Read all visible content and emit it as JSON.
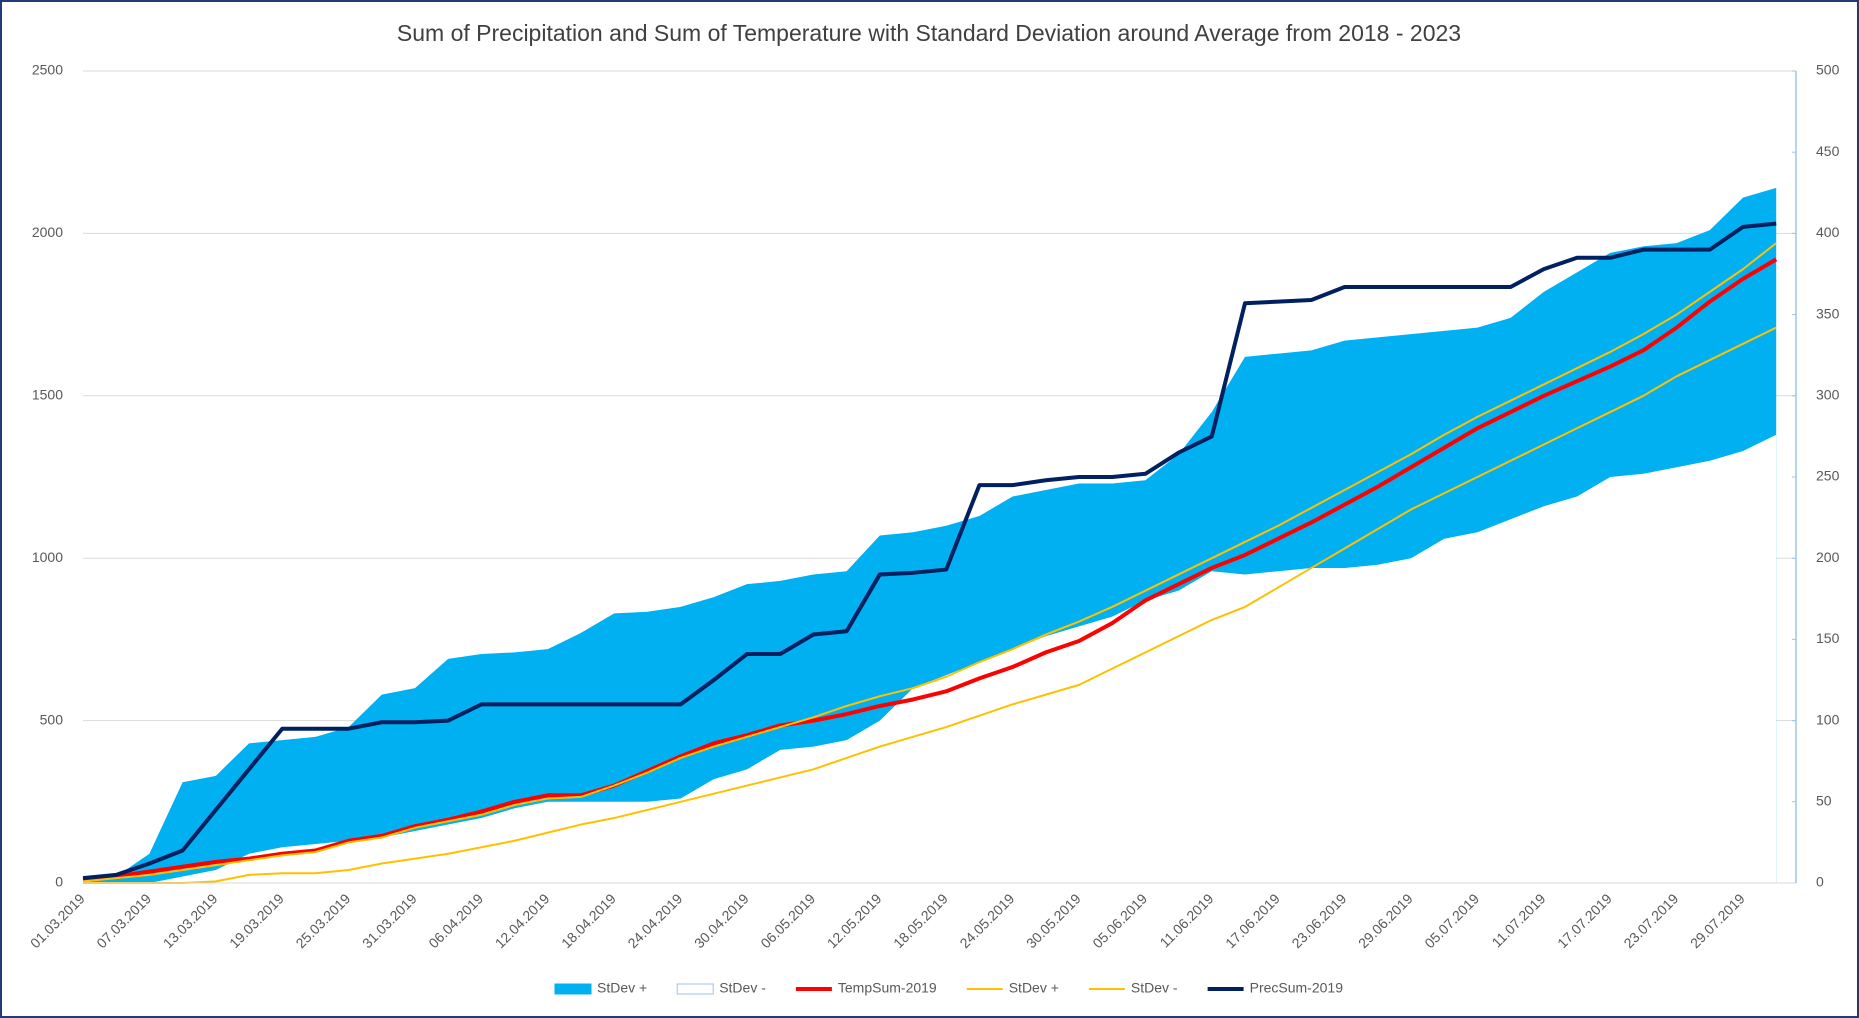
{
  "chart_data": {
    "type": "line",
    "title": "Sum of Precipitation and Sum of Temperature with Standard Deviation around Average from 2018 - 2023",
    "categories": [
      "01.03.2019",
      null,
      "07.03.2019",
      null,
      "13.03.2019",
      null,
      "19.03.2019",
      null,
      "25.03.2019",
      null,
      "31.03.2019",
      null,
      "06.04.2019",
      null,
      "12.04.2019",
      null,
      "18.04.2019",
      null,
      "24.04.2019",
      null,
      "30.04.2019",
      null,
      "06.05.2019",
      null,
      "12.05.2019",
      null,
      "18.05.2019",
      null,
      "24.05.2019",
      null,
      "30.05.2019",
      null,
      "05.06.2019",
      null,
      "11.06.2019",
      null,
      "17.06.2019",
      null,
      "23.06.2019",
      null,
      "29.06.2019",
      null,
      "05.07.2019",
      null,
      "11.07.2019",
      null,
      "17.07.2019",
      null,
      "23.07.2019",
      null,
      "29.07.2019",
      null
    ],
    "series": [
      {
        "name": "StDev +",
        "color": "#00b0f0",
        "mark": "area",
        "axis": "y2",
        "values": [
          0,
          4,
          18,
          62,
          66,
          86,
          88,
          90,
          96,
          116,
          120,
          138,
          141,
          142,
          144,
          154,
          166,
          167,
          170,
          176,
          184,
          186,
          190,
          192,
          214,
          216,
          220,
          226,
          238,
          242,
          246,
          246,
          248,
          264,
          290,
          324,
          326,
          328,
          334,
          336,
          338,
          340,
          342,
          348,
          364,
          376,
          388,
          392,
          394,
          402,
          422,
          428
        ]
      },
      {
        "name": "StDev -",
        "color": "#ffffff",
        "mark": "area",
        "axis": "y2",
        "values": [
          0,
          0,
          0,
          4,
          8,
          18,
          22,
          24,
          26,
          28,
          32,
          36,
          40,
          46,
          50,
          50,
          50,
          50,
          52,
          64,
          70,
          82,
          84,
          88,
          100,
          120,
          128,
          136,
          144,
          152,
          158,
          164,
          174,
          180,
          192,
          190,
          192,
          194,
          194,
          196,
          200,
          212,
          216,
          224,
          232,
          238,
          250,
          252,
          256,
          260,
          266,
          276
        ]
      },
      {
        "name": "TempSum-2019",
        "color": "#ff0000",
        "mark": "line",
        "width": 4,
        "values": [
          10,
          20,
          35,
          50,
          65,
          75,
          90,
          100,
          130,
          145,
          175,
          195,
          220,
          250,
          270,
          270,
          300,
          345,
          390,
          430,
          455,
          485,
          500,
          520,
          545,
          565,
          590,
          630,
          665,
          710,
          745,
          800,
          870,
          920,
          970,
          1010,
          1060,
          1110,
          1165,
          1220,
          1280,
          1340,
          1400,
          1450,
          1500,
          1545,
          1590,
          1640,
          1710,
          1790,
          1860,
          1920
        ]
      },
      {
        "name": "StDev +",
        "color": "#ffc000",
        "mark": "line",
        "width": 2,
        "values": [
          5,
          15,
          25,
          40,
          55,
          70,
          85,
          95,
          125,
          140,
          170,
          190,
          210,
          240,
          260,
          265,
          300,
          340,
          385,
          420,
          450,
          480,
          510,
          545,
          575,
          600,
          635,
          680,
          720,
          765,
          805,
          850,
          900,
          950,
          1000,
          1050,
          1100,
          1155,
          1210,
          1265,
          1320,
          1380,
          1435,
          1485,
          1535,
          1585,
          1635,
          1690,
          1750,
          1820,
          1890,
          1970
        ]
      },
      {
        "name": "StDev -",
        "color": "#ffc000",
        "mark": "line",
        "width": 2,
        "values": [
          0,
          0,
          0,
          0,
          5,
          25,
          30,
          30,
          40,
          60,
          75,
          90,
          110,
          130,
          155,
          180,
          200,
          225,
          250,
          275,
          300,
          325,
          350,
          385,
          420,
          450,
          480,
          515,
          550,
          580,
          610,
          660,
          710,
          760,
          810,
          850,
          910,
          970,
          1030,
          1090,
          1150,
          1200,
          1250,
          1300,
          1350,
          1400,
          1450,
          1500,
          1560,
          1610,
          1660,
          1710
        ]
      },
      {
        "name": "PrecSum-2019",
        "color": "#002060",
        "mark": "line",
        "width": 4,
        "axis": "y2",
        "values": [
          3,
          5,
          12,
          20,
          45,
          70,
          95,
          95,
          95,
          99,
          99,
          100,
          110,
          110,
          110,
          110,
          110,
          110,
          110,
          125,
          141,
          141,
          153,
          155,
          190,
          191,
          193,
          245,
          245,
          248,
          250,
          250,
          252,
          265,
          275,
          357,
          358,
          359,
          367,
          367,
          367,
          367,
          367,
          367,
          378,
          385,
          385,
          390,
          390,
          390,
          404,
          406
        ]
      }
    ],
    "ylim": [
      0,
      2500
    ],
    "yticks": [
      0,
      500,
      1000,
      1500,
      2000,
      2500
    ],
    "y2lim": [
      0,
      500
    ],
    "y2ticks": [
      0,
      50,
      100,
      150,
      200,
      250,
      300,
      350,
      400,
      450,
      500
    ],
    "grid": true,
    "legend": "bottom"
  }
}
